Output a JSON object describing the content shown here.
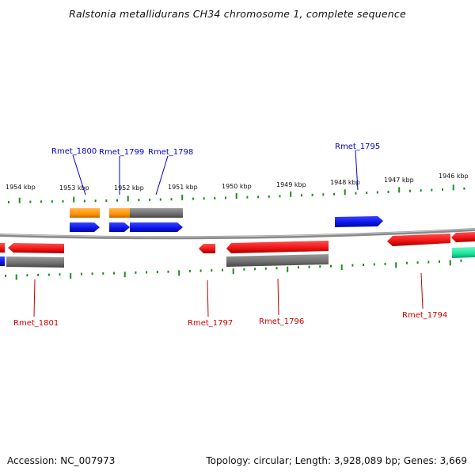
{
  "title": "Ralstonia metallidurans CH34 chromosome 1, complete sequence",
  "footer": {
    "accession": "Accession: NC_007973",
    "summary": "Topology: circular; Length: 3,928,089 bp; Genes: 3,669"
  },
  "ruler_labels": [
    "1954 kbp",
    "1953 kbp",
    "1952 kbp",
    "1951 kbp",
    "1950 kbp",
    "1949 kbp",
    "1948 kbp",
    "1947 kbp",
    "1946 kbp"
  ],
  "colors": {
    "forward_gene": "#0a14e6",
    "reverse_gene": "#ee1111",
    "cds_gray": "#6f6f6f",
    "cds_orange": "#ff9400",
    "teal_feature": "#17e69a",
    "tick_green": "#1f8a1f",
    "backbone": "#8a8a8a",
    "label_blue": "#0000cc",
    "label_red": "#cc0000"
  },
  "genes_top": [
    "Rmet_1800",
    "Rmet_1799",
    "Rmet_1798",
    "Rmet_1795"
  ],
  "genes_bottom": [
    "Rmet_1801",
    "Rmet_1797",
    "Rmet_1796",
    "Rmet_1794"
  ]
}
